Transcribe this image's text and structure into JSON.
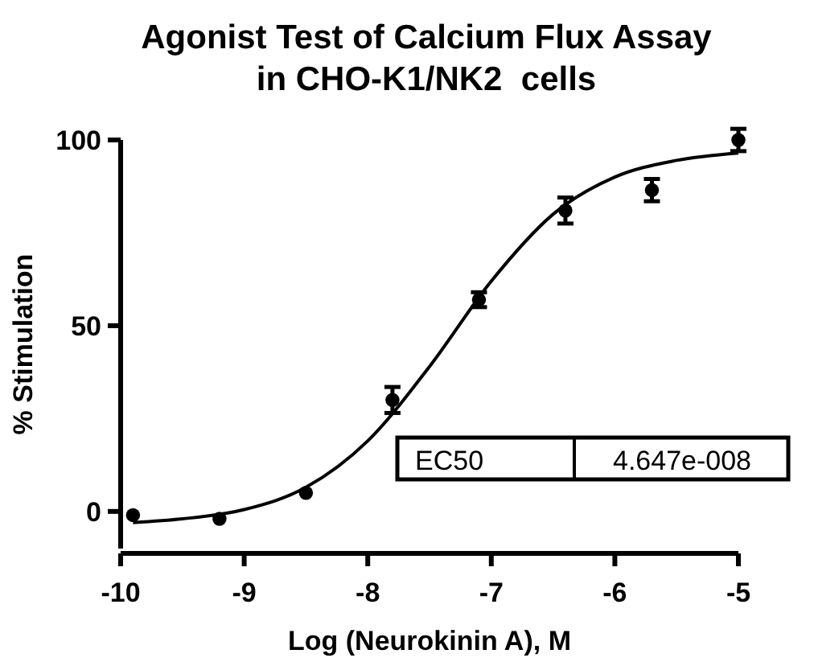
{
  "chart_data": {
    "type": "scatter",
    "title": "Agonist Test of Calcium Flux Assay\nin CHO-K1/NK2  cells",
    "xlabel": "Log (Neurokinin A), M",
    "ylabel": "% Stimulation",
    "xlim": [
      -10,
      -5
    ],
    "xticks": [
      -10,
      -9,
      -8,
      -7,
      -6,
      -5
    ],
    "ylim": [
      -10,
      100
    ],
    "yticks": [
      0,
      50,
      100
    ],
    "grid": false,
    "marker": "circle",
    "series": [
      {
        "color": "#000000",
        "x": [
          -9.9,
          -9.2,
          -8.5,
          -7.8,
          -7.1,
          -6.4,
          -5.7,
          -5
        ],
        "values": [
          -1,
          -2,
          5,
          30,
          57,
          81,
          86.5,
          100
        ],
        "errors": [
          null,
          null,
          null,
          3.5,
          2,
          3.5,
          3,
          3
        ]
      },
      {
        "type": "line",
        "color": "#000000",
        "marker": "none",
        "line_style": "solid",
        "x": [
          -9.9,
          -9.5,
          -9,
          -8.5,
          -8,
          -7.5,
          -7,
          -6.5,
          -6,
          -5.5,
          -5
        ],
        "values": [
          -3,
          -2,
          0.5,
          6.5,
          19,
          39,
          62,
          80,
          90,
          94.5,
          96.5
        ]
      }
    ],
    "annotations": [
      "EC50",
      "4.647e-008"
    ]
  }
}
